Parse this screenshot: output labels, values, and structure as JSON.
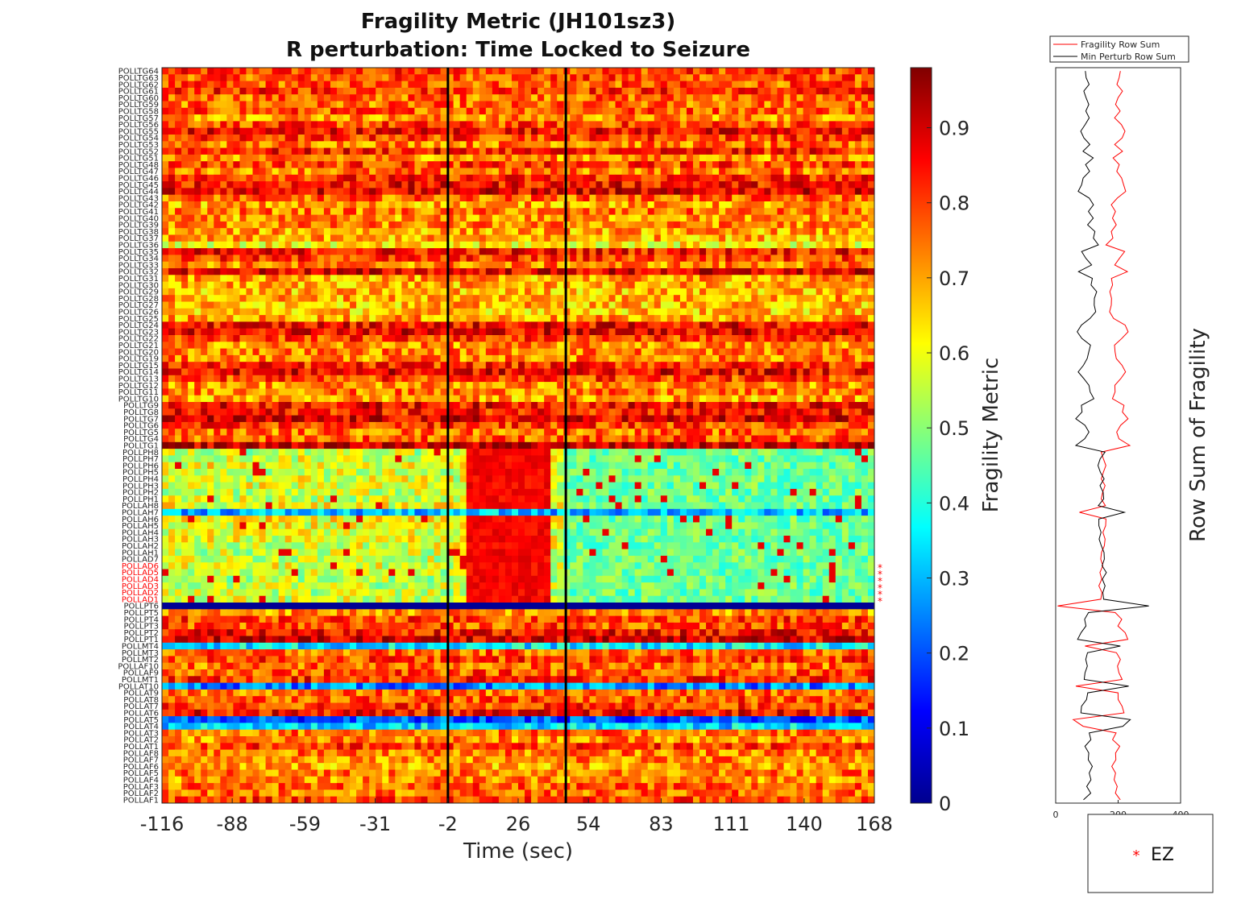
{
  "chart_data": [
    {
      "type": "heatmap",
      "title": "Fragility Metric (JH101sz3)",
      "subtitle": "R perturbation:  Time Locked to Seizure",
      "xlabel": "Time (sec)",
      "x_ticks": [
        "-116",
        "-88",
        "-59",
        "-31",
        "-2",
        "26",
        "54",
        "83",
        "111",
        "140",
        "168"
      ],
      "xlim": [
        -116,
        168
      ],
      "markers": [
        {
          "x": -2
        },
        {
          "x": 45
        }
      ],
      "colorbar": {
        "label": "Fragility Metric",
        "ticks": [
          "0",
          "0.1",
          "0.2",
          "0.3",
          "0.4",
          "0.5",
          "0.6",
          "0.7",
          "0.8",
          "0.9"
        ],
        "range": [
          0,
          0.98
        ],
        "colormap": "jet"
      },
      "channels": [
        "POLLTG64",
        "POLLTG63",
        "POLLTG62",
        "POLLTG61",
        "POLLTG60",
        "POLLTG59",
        "POLLTG58",
        "POLLTG57",
        "POLLTG56",
        "POLLTG55",
        "POLLTG54",
        "POLLTG53",
        "POLLTG52",
        "POLLTG51",
        "POLLTG48",
        "POLLTG47",
        "POLLTG46",
        "POLLTG45",
        "POLLTG44",
        "POLLTG43",
        "POLLTG42",
        "POLLTG41",
        "POLLTG40",
        "POLLTG39",
        "POLLTG38",
        "POLLTG37",
        "POLLTG36",
        "POLLTG35",
        "POLLTG34",
        "POLLTG33",
        "POLLTG32",
        "POLLTG31",
        "POLLTG30",
        "POLLTG29",
        "POLLTG28",
        "POLLTG27",
        "POLLTG26",
        "POLLTG25",
        "POLLTG24",
        "POLLTG23",
        "POLLTG22",
        "POLLTG21",
        "POLLTG20",
        "POLLTG19",
        "POLLTG15",
        "POLLTG14",
        "POLLTG13",
        "POLLTG12",
        "POLLTG11",
        "POLLTG10",
        "POLLTG9",
        "POLLTG8",
        "POLLTG7",
        "POLLTG6",
        "POLLTG5",
        "POLLTG4",
        "POLLTG1",
        "POLLPH8",
        "POLLPH7",
        "POLLPH6",
        "POLLPH5",
        "POLLPH4",
        "POLLPH3",
        "POLLPH2",
        "POLLPH1",
        "POLLAH8",
        "POLLAH7",
        "POLLAH6",
        "POLLAH5",
        "POLLAH4",
        "POLLAH3",
        "POLLAH2",
        "POLLAH1",
        "POLLAD7",
        "POLLAD6",
        "POLLAD5",
        "POLLAD4",
        "POLLAD3",
        "POLLAD2",
        "POLLAD1",
        "POLLPT6",
        "POLLPT5",
        "POLLPT4",
        "POLLPT3",
        "POLLPT2",
        "POLLPT1",
        "POLLMT4",
        "POLLMT3",
        "POLLMT2",
        "POLLAF10",
        "POLLAF9",
        "POLLMT1",
        "POLLAT10",
        "POLLAT9",
        "POLLAT8",
        "POLLAT7",
        "POLLAT6",
        "POLLAT5",
        "POLLAT4",
        "POLLAT3",
        "POLLAT2",
        "POLLAT1",
        "POLLAF8",
        "POLLAF7",
        "POLLAF6",
        "POLLAF5",
        "POLLAF4",
        "POLLAF3",
        "POLLAF2",
        "POLLAF1"
      ],
      "ez_channels": [
        "POLLAD6",
        "POLLAD5",
        "POLLAD4",
        "POLLAD3",
        "POLLAD2",
        "POLLAD1"
      ],
      "row_levels": {
        "POLLTG64": 0.8,
        "POLLTG63": 0.78,
        "POLLTG62": 0.77,
        "POLLTG61": 0.82,
        "POLLTG60": 0.76,
        "POLLTG59": 0.75,
        "POLLTG58": 0.78,
        "POLLTG57": 0.72,
        "POLLTG56": 0.79,
        "POLLTG55": 0.86,
        "POLLTG54": 0.8,
        "POLLTG53": 0.74,
        "POLLTG52": 0.84,
        "POLLTG51": 0.72,
        "POLLTG48": 0.8,
        "POLLTG47": 0.74,
        "POLLTG46": 0.82,
        "POLLTG45": 0.85,
        "POLLTG44": 0.88,
        "POLLTG43": 0.76,
        "POLLTG42": 0.7,
        "POLLTG41": 0.74,
        "POLLTG40": 0.71,
        "POLLTG39": 0.73,
        "POLLTG38": 0.7,
        "POLLTG37": 0.69,
        "POLLTG36": 0.62,
        "POLLTG35": 0.85,
        "POLLTG34": 0.8,
        "POLLTG33": 0.73,
        "POLLTG32": 0.88,
        "POLLTG31": 0.7,
        "POLLTG30": 0.69,
        "POLLTG29": 0.68,
        "POLLTG28": 0.7,
        "POLLTG27": 0.68,
        "POLLTG26": 0.67,
        "POLLTG25": 0.7,
        "POLLTG24": 0.86,
        "POLLTG23": 0.88,
        "POLLTG22": 0.8,
        "POLLTG21": 0.72,
        "POLLTG20": 0.74,
        "POLLTG19": 0.73,
        "POLLTG15": 0.82,
        "POLLTG14": 0.87,
        "POLLTG13": 0.8,
        "POLLTG12": 0.72,
        "POLLTG11": 0.74,
        "POLLTG10": 0.7,
        "POLLTG9": 0.86,
        "POLLTG8": 0.84,
        "POLLTG7": 0.88,
        "POLLTG6": 0.8,
        "POLLTG5": 0.75,
        "POLLTG4": 0.77,
        "POLLTG1": 0.92,
        "POLLPH8": 0.55,
        "POLLPH7": 0.58,
        "POLLPH6": 0.6,
        "POLLPH5": 0.57,
        "POLLPH4": 0.58,
        "POLLPH3": 0.59,
        "POLLPH2": 0.56,
        "POLLPH1": 0.57,
        "POLLAH8": 0.6,
        "POLLAH7": 0.3,
        "POLLAH6": 0.62,
        "POLLAH5": 0.6,
        "POLLAH4": 0.6,
        "POLLAH3": 0.59,
        "POLLAH2": 0.58,
        "POLLAH1": 0.56,
        "POLLAD7": 0.57,
        "POLLAD6": 0.58,
        "POLLAD5": 0.56,
        "POLLAD4": 0.55,
        "POLLAD3": 0.55,
        "POLLAD2": 0.56,
        "POLLAD1": 0.57,
        "POLLPT6": 0.02,
        "POLLPT5": 0.72,
        "POLLPT4": 0.8,
        "POLLPT3": 0.78,
        "POLLPT2": 0.85,
        "POLLPT1": 0.9,
        "POLLMT4": 0.35,
        "POLLMT3": 0.76,
        "POLLMT2": 0.8,
        "POLLAF10": 0.75,
        "POLLAF9": 0.78,
        "POLLMT1": 0.82,
        "POLLAT10": 0.25,
        "POLLAT9": 0.75,
        "POLLAT8": 0.78,
        "POLLAT7": 0.8,
        "POLLAT6": 0.85,
        "POLLAT5": 0.2,
        "POLLAT4": 0.33,
        "POLLAT3": 0.75,
        "POLLAT2": 0.72,
        "POLLAT1": 0.8,
        "POLLAF8": 0.74,
        "POLLAF7": 0.73,
        "POLLAF6": 0.7,
        "POLLAF5": 0.74,
        "POLLAF4": 0.72,
        "POLLAF3": 0.76,
        "POLLAF2": 0.75,
        "POLLAF1": 0.8
      }
    },
    {
      "type": "line",
      "ylabel": "Row Sum of Fragility",
      "x_ticks": [
        "0",
        "200",
        "400"
      ],
      "xlim": [
        0,
        400
      ],
      "legend_position": "top",
      "series": [
        {
          "name": "Fragility Row Sum",
          "color": "#ff0000"
        },
        {
          "name": "Min Perturb Row Sum",
          "color": "#000000"
        }
      ]
    }
  ],
  "legend_box": {
    "marker": "*",
    "label": "EZ",
    "color": "#ff0000"
  }
}
